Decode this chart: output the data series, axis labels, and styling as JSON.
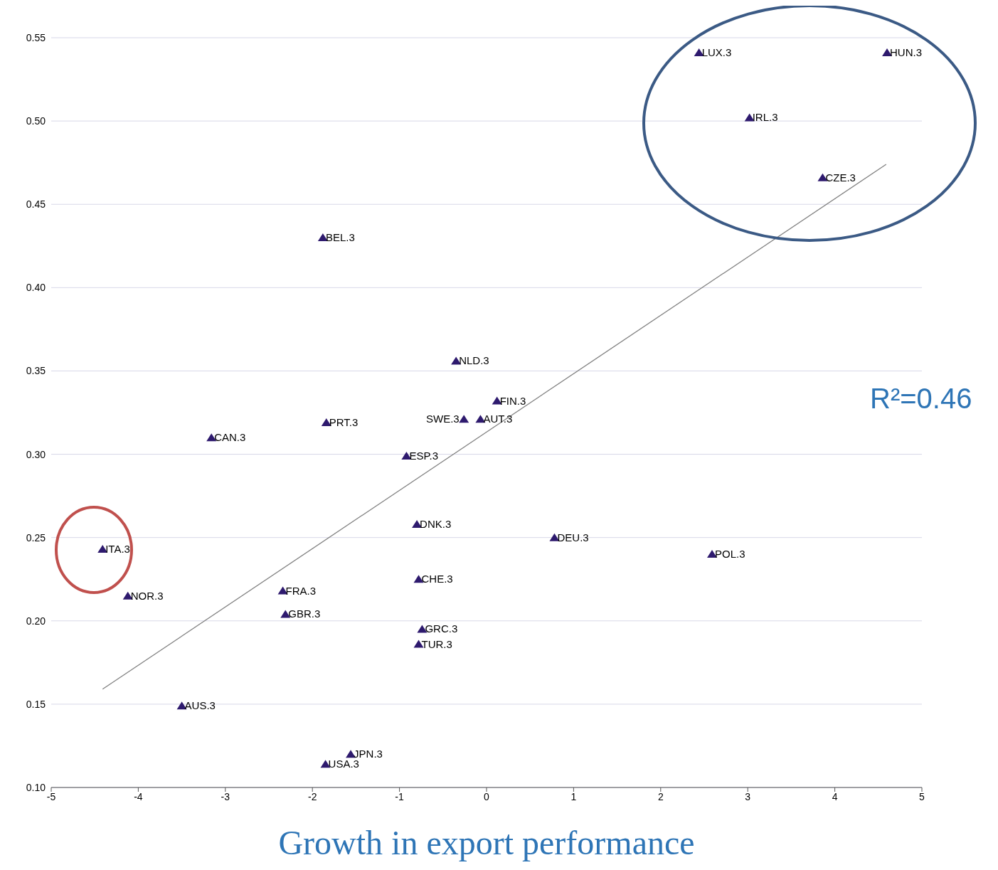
{
  "chart_data": {
    "type": "scatter",
    "xlabel": "Growth in export performance",
    "annotations": [
      "R²=0.46"
    ],
    "xlim": [
      -5,
      5
    ],
    "xticks": [
      -5,
      -4,
      -3,
      -2,
      -1,
      0,
      1,
      2,
      3,
      4,
      5
    ],
    "ylim": [
      0.1,
      0.55
    ],
    "yticks": [
      {
        "value": 0.1,
        "label": "0.10"
      },
      {
        "value": 0.15,
        "label": "0.15"
      },
      {
        "value": 0.2,
        "label": "0.20"
      },
      {
        "value": 0.25,
        "label": "0.25"
      },
      {
        "value": 0.3,
        "label": "0.30"
      },
      {
        "value": 0.35,
        "label": "0.35"
      },
      {
        "value": 0.4,
        "label": "0.40"
      },
      {
        "value": 0.45,
        "label": "0.45"
      },
      {
        "value": 0.5,
        "label": "0.50"
      },
      {
        "value": 0.55,
        "label": "0.55"
      }
    ],
    "grid": "y",
    "legend": false,
    "marker": "triangle",
    "series": [
      {
        "color": "#2e1a6e",
        "x": [
          2.44,
          4.6,
          3.02,
          3.86,
          -1.88,
          -0.35,
          0.12,
          -0.26,
          -0.07,
          -1.84,
          -3.16,
          -0.92,
          -0.8,
          0.78,
          2.59,
          -4.41,
          -0.78,
          -2.34,
          -4.12,
          -2.31,
          -0.74,
          -0.78,
          -3.5,
          -1.56,
          -1.85
        ],
        "values": [
          0.541,
          0.541,
          0.502,
          0.466,
          0.43,
          0.356,
          0.332,
          0.321,
          0.321,
          0.319,
          0.31,
          0.299,
          0.258,
          0.25,
          0.24,
          0.243,
          0.225,
          0.218,
          0.215,
          0.204,
          0.195,
          0.186,
          0.149,
          0.12,
          0.114
        ],
        "value_labels": [
          "LUX.3",
          "HUN.3",
          "IRL.3",
          "CZE.3",
          "BEL.3",
          "NLD.3",
          "FIN.3",
          "SWE.3",
          "AUT.3",
          "PRT.3",
          "CAN.3",
          "ESP.3",
          "DNK.3",
          "DEU.3",
          "POL.3",
          "ITA.3",
          "CHE.3",
          "FRA.3",
          "NOR.3",
          "GBR.3",
          "GRC.3",
          "TUR.3",
          "AUS.3",
          "JPN.3",
          "USA.3"
        ]
      },
      {
        "type": "line",
        "color": "#808080",
        "line_style": "solid",
        "marker": "none",
        "x": [
          -4.41,
          4.59
        ],
        "values": [
          0.159,
          0.474
        ]
      }
    ]
  }
}
